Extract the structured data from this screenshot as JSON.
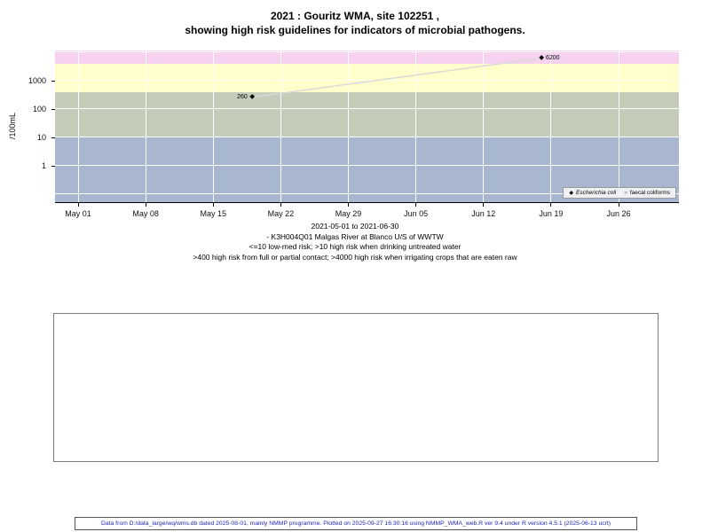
{
  "chart_data": {
    "type": "scatter",
    "title_lines": [
      "2021 : Gouritz WMA, site 102251 ,",
      "showing high risk guidelines for indicators of microbial pathogens."
    ],
    "ylabel": "/100mL",
    "y_scale": "log10",
    "y_range": [
      0.052,
      11500
    ],
    "y_ticks": [
      1000,
      100,
      10,
      1
    ],
    "grid_y_values": [
      10000,
      1000,
      100,
      10,
      1,
      0.1
    ],
    "grid": true,
    "x_tick_labels": [
      "May 01",
      "May 08",
      "May 15",
      "May 22",
      "May 29",
      "Jun 05",
      "Jun 12",
      "Jun 19",
      "Jun 26"
    ],
    "x_range": [
      "2021-05-01",
      "2021-06-30"
    ],
    "legend_position": "bottom-right",
    "series": [
      {
        "name": "Escherichia coli",
        "marker": "filled-diamond",
        "line_color": "#d9d9d9",
        "points": [
          {
            "date": "2021-05-19",
            "day_index": 18,
            "value": 260,
            "label": "260",
            "label_side": "left"
          },
          {
            "date": "2021-06-18",
            "day_index": 48,
            "value": 6200,
            "label": "6200",
            "label_side": "right"
          }
        ]
      },
      {
        "name": "faecal coliforms",
        "marker": "open-circle",
        "points": []
      }
    ],
    "risk_bands": [
      {
        "from": 4000,
        "to": 11500,
        "color": "#f6d2f0",
        "meaning": ">4000 high risk when irrigating crops that are eaten raw"
      },
      {
        "from": 400,
        "to": 4000,
        "color": "#ffffcc",
        "meaning": ">400 high risk from full or partial contact"
      },
      {
        "from": 10,
        "to": 400,
        "color": "#c5cdba",
        "meaning": ">10 high risk when drinking untreated water"
      },
      {
        "from": 0.052,
        "to": 10,
        "color": "#a8b7cf",
        "meaning": "<=10 low-med risk"
      }
    ]
  },
  "legend": {
    "items": [
      {
        "label": "Escherichia coli",
        "marker": "filled-diamond",
        "italic": true
      },
      {
        "label": "faecal coliforms",
        "marker": "open-circle",
        "italic": false
      }
    ]
  },
  "caption": {
    "lines": [
      "2021-05-01 to 2021-06-30",
      "- K3H004Q01 Malgas River at Blanco U/S of WWTW",
      "<=10 low-med risk; >10 high risk when drinking untreated water",
      ">400 high risk from full or partial contact; >4000 high risk when irrigating crops that are eaten raw"
    ]
  },
  "footer": {
    "text": "Data from D:/data_large/wq/wms.db dated 2025-08-01, mainly NMMP programme. Plotted on 2025-09-27 16:30:16 using NMMP_WMA_web.R ver 9.4 under R version 4.5.1 (2025-06-13 ucrt)"
  }
}
